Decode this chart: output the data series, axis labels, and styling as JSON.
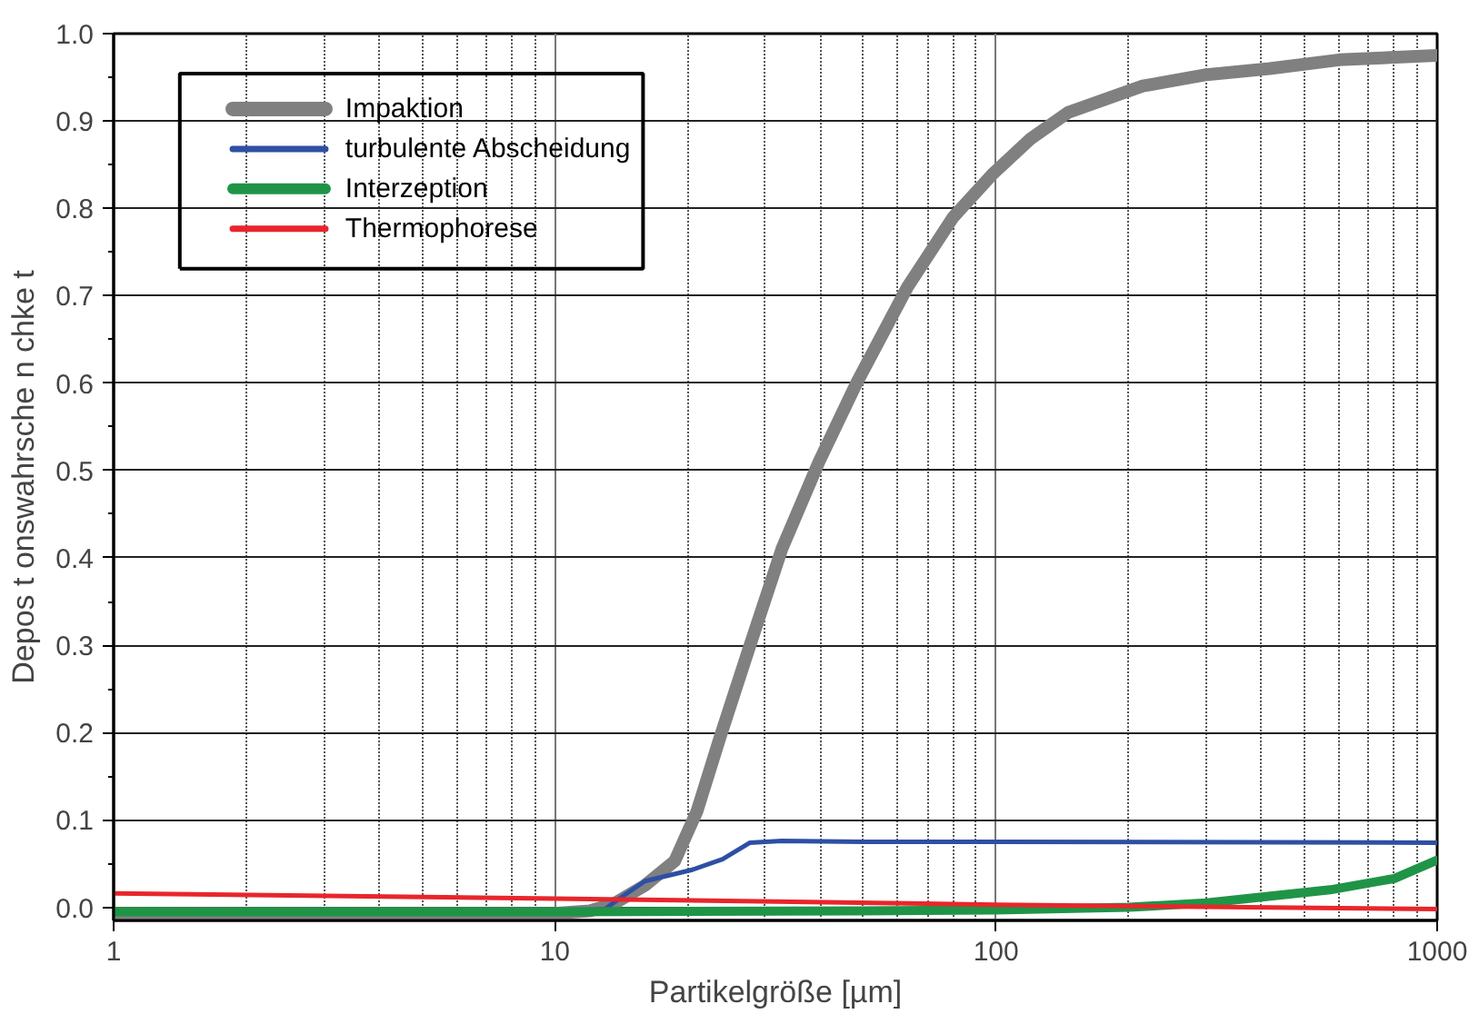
{
  "chart_data": {
    "type": "line",
    "xlabel": "Partikelgröße [µm]",
    "ylabel": "Depos t onswahrsche n chke t",
    "log": "x",
    "xlim": [
      1,
      1000
    ],
    "ylim": [
      -0.015,
      1.0
    ],
    "xticks": [
      1,
      10,
      100,
      1000
    ],
    "yticks": [
      {
        "value": 0,
        "label": "0.0"
      },
      0.1,
      0.2,
      0.3,
      0.4,
      0.5,
      0.6,
      0.7,
      0.8,
      0.9,
      {
        "value": 1,
        "label": "1.0"
      }
    ],
    "grid": true,
    "legend": "top left",
    "line_style": "solid",
    "marker": "none",
    "series": [
      {
        "name": "Impaktion",
        "color": "#808080",
        "x": [
          1,
          5,
          10,
          12,
          13.6,
          16,
          18.7,
          21,
          23.7,
          27.7,
          32.7,
          39.7,
          48.3,
          63,
          80,
          98.6,
          120,
          146,
          215,
          300,
          417,
          600,
          1000
        ],
        "values": [
          -0.007,
          -0.007,
          -0.007,
          -0.004,
          0.004,
          0.025,
          0.053,
          0.11,
          0.195,
          0.3,
          0.41,
          0.51,
          0.6,
          0.71,
          0.79,
          0.84,
          0.88,
          0.91,
          0.94,
          0.953,
          0.96,
          0.97,
          0.975
        ]
      },
      {
        "name": "turbulente Abscheidung",
        "color": "#2e4fa3",
        "x": [
          1,
          10,
          13,
          14,
          16,
          20.5,
          24,
          27.7,
          32.7,
          50,
          100,
          1000
        ],
        "values": [
          -0.005,
          -0.005,
          -0.002,
          0.01,
          0.03,
          0.043,
          0.055,
          0.074,
          0.076,
          0.075,
          0.075,
          0.074
        ]
      },
      {
        "name": "Interzeption",
        "color": "#1f9447",
        "x": [
          1,
          10,
          50,
          100,
          200,
          300,
          572,
          800,
          1000
        ],
        "values": [
          -0.005,
          -0.005,
          -0.004,
          -0.003,
          0.0,
          0.005,
          0.02,
          0.033,
          0.054
        ]
      },
      {
        "name": "Thermophorese",
        "color": "#e8262b",
        "x": [
          1,
          10,
          100,
          1000
        ],
        "values": [
          0.016,
          0.01,
          0.003,
          -0.002
        ]
      }
    ]
  }
}
